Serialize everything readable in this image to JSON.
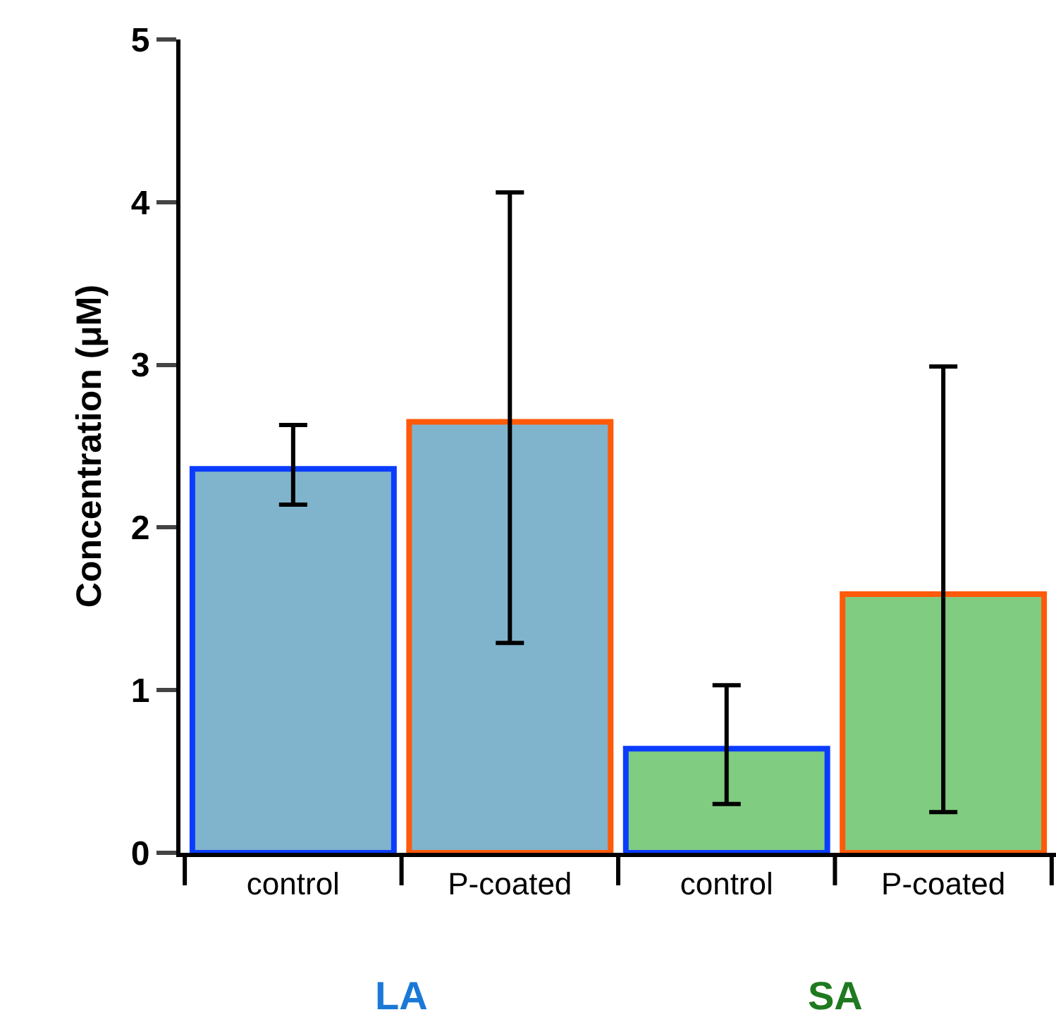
{
  "chart_data": {
    "type": "bar",
    "ylabel": "Concentration (μM)",
    "categories": [
      "control",
      "P-coated",
      "control",
      "P-coated"
    ],
    "values": [
      2.36,
      2.65,
      0.64,
      1.59
    ],
    "colors": [
      "#80b3cc",
      "#80b3cc",
      "#80cc80",
      "#80cc80"
    ],
    "errors": [
      [
        2.14,
        2.63
      ],
      [
        1.29,
        4.06
      ],
      [
        0.3,
        1.03
      ],
      [
        0.25,
        2.99
      ]
    ],
    "ylim": [
      0,
      5
    ],
    "yticks": [
      0,
      1,
      2,
      3,
      4,
      5
    ],
    "annotations": [
      "LA",
      "SA"
    ]
  }
}
